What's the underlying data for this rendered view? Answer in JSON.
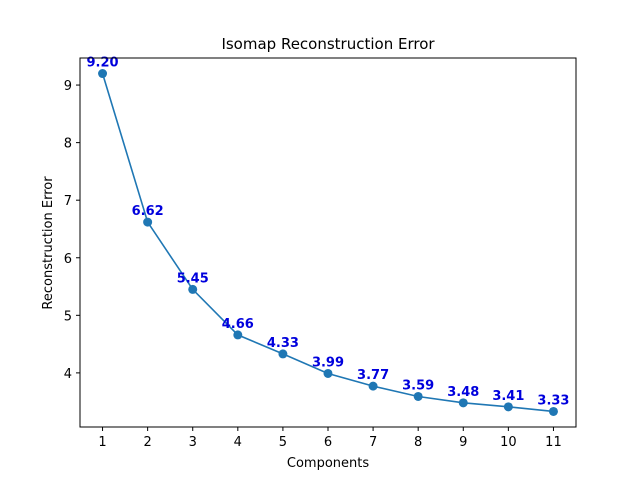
{
  "chart_data": {
    "type": "line",
    "title": "Isomap Reconstruction Error",
    "xlabel": "Components",
    "ylabel": "Reconstruction Error",
    "x": [
      1,
      2,
      3,
      4,
      5,
      6,
      7,
      8,
      9,
      10,
      11
    ],
    "y": [
      9.2,
      6.62,
      5.45,
      4.66,
      4.33,
      3.99,
      3.77,
      3.59,
      3.48,
      3.41,
      3.33
    ],
    "data_labels": [
      "9.20",
      "6.62",
      "5.45",
      "4.66",
      "4.33",
      "3.99",
      "3.77",
      "3.59",
      "3.48",
      "3.41",
      "3.33"
    ],
    "xticks": [
      1,
      2,
      3,
      4,
      5,
      6,
      7,
      8,
      9,
      10,
      11
    ],
    "yticks": [
      4,
      5,
      6,
      7,
      8,
      9
    ],
    "xlim": [
      0.5,
      11.5
    ],
    "ylim": [
      3.06,
      9.47
    ],
    "grid": false,
    "line_color": "#1f77b4",
    "label_color": "#0000dd",
    "marker": "circle"
  }
}
